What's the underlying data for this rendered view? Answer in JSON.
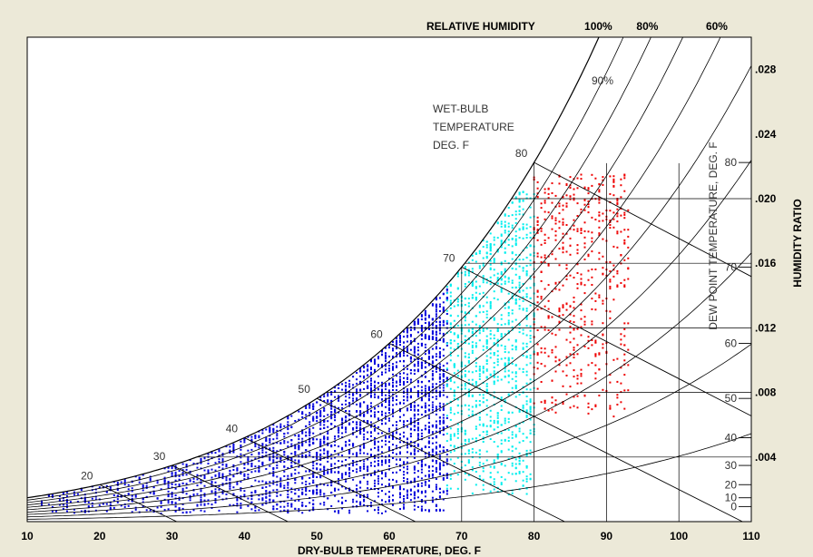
{
  "chart_data": {
    "type": "scatter",
    "subtype": "psychrometric-chart",
    "xlabel": "DRY-BULB TEMPERATURE, DEG. F",
    "ylabel": "HUMIDITY RATIO",
    "xlim": [
      10,
      110
    ],
    "ylim": [
      0,
      0.03
    ],
    "x_ticks": [
      "10",
      "20",
      "30",
      "40",
      "50",
      "60",
      "70",
      "80",
      "90",
      "100",
      "110"
    ],
    "y_ticks": [
      ".004",
      ".008",
      ".012",
      ".016",
      ".020",
      ".024",
      ".028"
    ],
    "grid": "vertical at 70, 80, 90, 100 F; horizontal at .004 to .020",
    "relative_humidity": {
      "title": "RELATIVE HUMIDITY",
      "top_labels": [
        "100%",
        "80%",
        "60%"
      ],
      "inner_label": "90%",
      "curves_percent": [
        100,
        90,
        80,
        70,
        60,
        50,
        40,
        30,
        20,
        10
      ]
    },
    "wet_bulb": {
      "title_lines": [
        "WET-BULB",
        "TEMPERATURE",
        "DEG. F"
      ],
      "labels": [
        "20",
        "30",
        "40",
        "50",
        "60",
        "70",
        "80"
      ]
    },
    "dew_point": {
      "title": "DEW POINT TEMPERATURE, DEG. F",
      "labels": [
        "80",
        "70",
        "60",
        "50",
        "40",
        "30",
        "20",
        "10",
        "0"
      ]
    },
    "series": [
      {
        "color": "#0000dd",
        "x_range": [
          12,
          68
        ],
        "w_range": [
          0.0005,
          0.0145
        ],
        "points": 2700
      },
      {
        "color": "#00eeee",
        "x_range": [
          68,
          80
        ],
        "w_range": [
          0.0015,
          0.0205
        ],
        "points": 1100
      },
      {
        "color": "#ee0000",
        "x_range": [
          80,
          93
        ],
        "w_range": [
          0.0065,
          0.0215
        ],
        "points": 550
      }
    ]
  }
}
